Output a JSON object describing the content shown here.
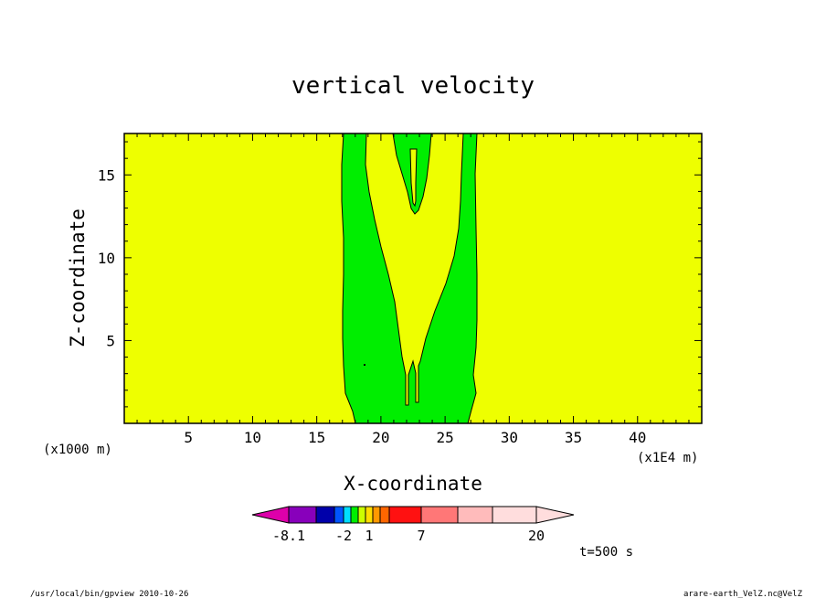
{
  "chart_data": {
    "type": "heatmap",
    "title": "vertical velocity",
    "xlabel": "X-coordinate",
    "ylabel": "Z-coordinate",
    "x_tick_labels": [
      "5",
      "10",
      "15",
      "20",
      "25",
      "30",
      "35",
      "40"
    ],
    "x_ticks": [
      5,
      10,
      15,
      20,
      25,
      30,
      35,
      40
    ],
    "xlim": [
      0,
      45
    ],
    "y_tick_labels": [
      "5",
      "10",
      "15"
    ],
    "y_ticks": [
      5,
      10,
      15
    ],
    "ylim": [
      0,
      17.5
    ],
    "x_scale_note_left": "(x1000 m)",
    "x_scale_note_right": "(x1E4 m)",
    "background_level": "-2 to 1",
    "contour_regions": [
      {
        "name": "green band",
        "color": "#00ee00",
        "x_range_bottom": [
          17.3,
          27.4
        ],
        "x_range_top": [
          17.0,
          27.5
        ]
      },
      {
        "name": "central yellow core",
        "color": "#eeff00",
        "x_center": 22.3,
        "narrows_to_z": 3.8
      }
    ],
    "colorbar": {
      "levels_labels": [
        "-8.1",
        "-2",
        "1",
        "7",
        "20"
      ],
      "colors": [
        "#dd00aa",
        "#8800bb",
        "#0000aa",
        "#0055ff",
        "#00ddff",
        "#00ee00",
        "#ccff00",
        "#ffdd00",
        "#ff9900",
        "#ff6600",
        "#ff1111",
        "#ff7777",
        "#ffbbbb",
        "#ffdddd"
      ]
    },
    "time_label": "t=500 s",
    "footer_left": "/usr/local/bin/gpview  2010-10-26",
    "footer_right": "arare-earth_VelZ.nc@VelZ"
  }
}
